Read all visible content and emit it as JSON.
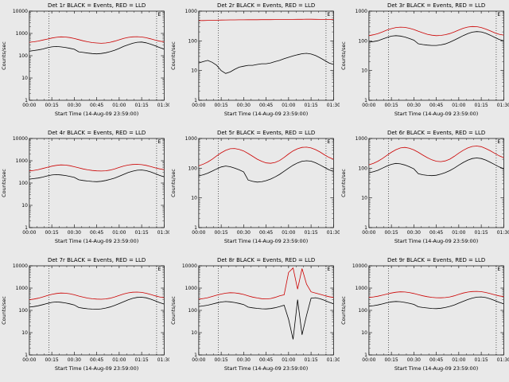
{
  "page": {
    "background": "#e9e9e9"
  },
  "chart_common": {
    "xlabel": "Start Time (14-Aug-09 23:59:00)",
    "ylabel": "Counts/sec",
    "x_tick_labels": [
      "00:00",
      "00:15",
      "00:30",
      "00:45",
      "01:00",
      "01:15",
      "01:30"
    ],
    "x_max_minutes": 90,
    "x_minutes": [
      0,
      3,
      6,
      9,
      12,
      15,
      18,
      21,
      24,
      27,
      30,
      33,
      36,
      39,
      42,
      45,
      48,
      51,
      54,
      57,
      60,
      63,
      66,
      69,
      72,
      75,
      78,
      81,
      84,
      87,
      90
    ],
    "vlines_minutes": [
      13,
      85
    ],
    "annotation": {
      "label": "E",
      "x_minute": 85
    },
    "grid": "off",
    "legend": "in-title",
    "series_colors": {
      "events": "#000000",
      "lld": "#cc0000"
    }
  },
  "chart_data": [
    {
      "type": "line",
      "title": "Det 1r BLACK = Events, RED = LLD",
      "ylim": [
        1,
        10000
      ],
      "series": [
        {
          "name": "Events",
          "color": "#000000",
          "values": [
            160,
            170,
            182,
            200,
            228,
            250,
            260,
            250,
            235,
            215,
            195,
            150,
            140,
            131,
            125,
            121,
            126,
            136,
            152,
            176,
            212,
            262,
            312,
            362,
            400,
            410,
            380,
            330,
            280,
            232,
            200
          ]
        },
        {
          "name": "LLD",
          "color": "#cc0000",
          "values": [
            400,
            420,
            455,
            505,
            560,
            620,
            670,
            700,
            690,
            650,
            590,
            525,
            465,
            420,
            390,
            372,
            362,
            372,
            400,
            452,
            520,
            600,
            662,
            700,
            712,
            690,
            640,
            572,
            502,
            452,
            420
          ]
        }
      ]
    },
    {
      "type": "line",
      "title": "Det 2r BLACK = Events, RED = LLD",
      "ylim": [
        1,
        1000
      ],
      "series": [
        {
          "name": "Events",
          "color": "#000000",
          "values": [
            18,
            20,
            22,
            19,
            15,
            10,
            8,
            9,
            11,
            13,
            14,
            15,
            15,
            16,
            17,
            17,
            18,
            20,
            22,
            25,
            28,
            31,
            34,
            37,
            38,
            36,
            32,
            27,
            22,
            18,
            16
          ]
        },
        {
          "name": "LLD",
          "color": "#cc0000",
          "values": [
            480,
            484,
            488,
            492,
            496,
            500,
            503,
            506,
            508,
            510,
            512,
            513,
            514,
            515,
            516,
            517,
            518,
            520,
            522,
            524,
            526,
            528,
            530,
            531,
            532,
            532,
            530,
            528,
            526,
            524,
            522
          ]
        }
      ]
    },
    {
      "type": "line",
      "title": "Det 3r BLACK = Events, RED = LLD",
      "ylim": [
        1,
        1000
      ],
      "series": [
        {
          "name": "Events",
          "color": "#000000",
          "values": [
            90,
            95,
            101,
            115,
            130,
            144,
            150,
            145,
            135,
            120,
            105,
            80,
            75,
            72,
            70,
            70,
            73,
            79,
            90,
            106,
            126,
            151,
            176,
            196,
            205,
            200,
            180,
            155,
            131,
            111,
            100
          ]
        },
        {
          "name": "LLD",
          "color": "#cc0000",
          "values": [
            150,
            160,
            176,
            200,
            230,
            258,
            280,
            290,
            285,
            266,
            240,
            210,
            186,
            166,
            155,
            150,
            152,
            161,
            176,
            200,
            231,
            266,
            291,
            305,
            300,
            280,
            250,
            216,
            186,
            166,
            156
          ]
        }
      ]
    },
    {
      "type": "line",
      "title": "Det 4r BLACK = Events, RED = LLD",
      "ylim": [
        1,
        10000
      ],
      "series": [
        {
          "name": "Events",
          "color": "#000000",
          "values": [
            150,
            158,
            168,
            186,
            210,
            230,
            240,
            232,
            218,
            200,
            180,
            140,
            130,
            123,
            118,
            115,
            120,
            130,
            146,
            168,
            201,
            246,
            296,
            341,
            376,
            386,
            360,
            316,
            266,
            221,
            190
          ]
        },
        {
          "name": "LLD",
          "color": "#cc0000",
          "values": [
            350,
            370,
            402,
            452,
            510,
            570,
            620,
            650,
            640,
            600,
            540,
            480,
            430,
            391,
            366,
            351,
            346,
            356,
            381,
            431,
            501,
            581,
            641,
            681,
            690,
            670,
            620,
            551,
            481,
            431,
            400
          ]
        }
      ]
    },
    {
      "type": "line",
      "title": "Det 5r BLACK = Events, RED = LLD",
      "ylim": [
        1,
        1000
      ],
      "series": [
        {
          "name": "Events",
          "color": "#000000",
          "values": [
            55,
            60,
            68,
            80,
            95,
            110,
            118,
            112,
            100,
            88,
            75,
            40,
            36,
            34,
            35,
            38,
            43,
            51,
            62,
            79,
            100,
            126,
            151,
            171,
            178,
            172,
            152,
            128,
            106,
            88,
            78
          ]
        },
        {
          "name": "LLD",
          "color": "#cc0000",
          "values": [
            120,
            136,
            161,
            200,
            260,
            330,
            400,
            450,
            460,
            430,
            380,
            311,
            251,
            201,
            171,
            151,
            146,
            156,
            181,
            231,
            301,
            381,
            451,
            500,
            511,
            481,
            421,
            351,
            281,
            231,
            200
          ]
        }
      ]
    },
    {
      "type": "line",
      "title": "Det 6r BLACK = Events, RED = LLD",
      "ylim": [
        1,
        1000
      ],
      "series": [
        {
          "name": "Events",
          "color": "#000000",
          "values": [
            70,
            76,
            85,
            100,
            118,
            135,
            145,
            140,
            128,
            112,
            95,
            65,
            60,
            57,
            56,
            58,
            63,
            71,
            83,
            101,
            126,
            156,
            186,
            211,
            220,
            212,
            188,
            158,
            132,
            110,
            96
          ]
        },
        {
          "name": "LLD",
          "color": "#cc0000",
          "values": [
            130,
            146,
            171,
            211,
            270,
            341,
            420,
            480,
            500,
            470,
            411,
            341,
            276,
            226,
            191,
            171,
            166,
            176,
            201,
            251,
            321,
            401,
            481,
            540,
            556,
            531,
            461,
            386,
            316,
            261,
            226
          ]
        }
      ]
    },
    {
      "type": "line",
      "title": "Det 7r BLACK = Events, RED = LLD",
      "ylim": [
        1,
        10000
      ],
      "series": [
        {
          "name": "Events",
          "color": "#000000",
          "values": [
            140,
            148,
            161,
            181,
            205,
            228,
            240,
            232,
            216,
            196,
            175,
            135,
            125,
            118,
            114,
            112,
            117,
            127,
            143,
            166,
            201,
            246,
            296,
            346,
            381,
            390,
            366,
            319,
            269,
            223,
            192
          ]
        },
        {
          "name": "LLD",
          "color": "#cc0000",
          "values": [
            300,
            321,
            351,
            401,
            460,
            521,
            570,
            600,
            590,
            556,
            501,
            441,
            391,
            356,
            331,
            321,
            316,
            326,
            351,
            401,
            466,
            546,
            611,
            650,
            661,
            641,
            586,
            516,
            451,
            401,
            370
          ]
        }
      ]
    },
    {
      "type": "line",
      "title": "Det 8r BLACK = Events, RED = LLD",
      "ylim": [
        1,
        10000
      ],
      "series": [
        {
          "name": "Events",
          "color": "#000000",
          "values": [
            150,
            158,
            171,
            191,
            215,
            238,
            250,
            242,
            226,
            205,
            183,
            140,
            130,
            123,
            118,
            116,
            121,
            131,
            149,
            171,
            40,
            5,
            300,
            8,
            60,
            351,
            371,
            331,
            281,
            233,
            200
          ]
        },
        {
          "name": "LLD",
          "color": "#cc0000",
          "values": [
            320,
            341,
            371,
            421,
            480,
            541,
            590,
            620,
            610,
            571,
            516,
            451,
            396,
            361,
            336,
            326,
            341,
            381,
            451,
            501,
            5000,
            8000,
            900,
            7500,
            1500,
            681,
            601,
            526,
            461,
            411,
            380
          ]
        }
      ]
    },
    {
      "type": "line",
      "title": "Det 9r BLACK = Events, RED = LLD",
      "ylim": [
        1,
        10000
      ],
      "series": [
        {
          "name": "Events",
          "color": "#000000",
          "values": [
            155,
            163,
            175,
            195,
            220,
            242,
            252,
            245,
            228,
            208,
            186,
            145,
            135,
            128,
            122,
            120,
            125,
            135,
            151,
            175,
            211,
            256,
            306,
            356,
            391,
            400,
            376,
            329,
            277,
            229,
            198
          ]
        },
        {
          "name": "LLD",
          "color": "#cc0000",
          "values": [
            380,
            401,
            431,
            481,
            540,
            601,
            650,
            680,
            670,
            631,
            571,
            506,
            451,
            411,
            386,
            371,
            366,
            376,
            401,
            451,
            521,
            601,
            661,
            700,
            711,
            691,
            636,
            566,
            496,
            446,
            415
          ]
        }
      ]
    }
  ]
}
